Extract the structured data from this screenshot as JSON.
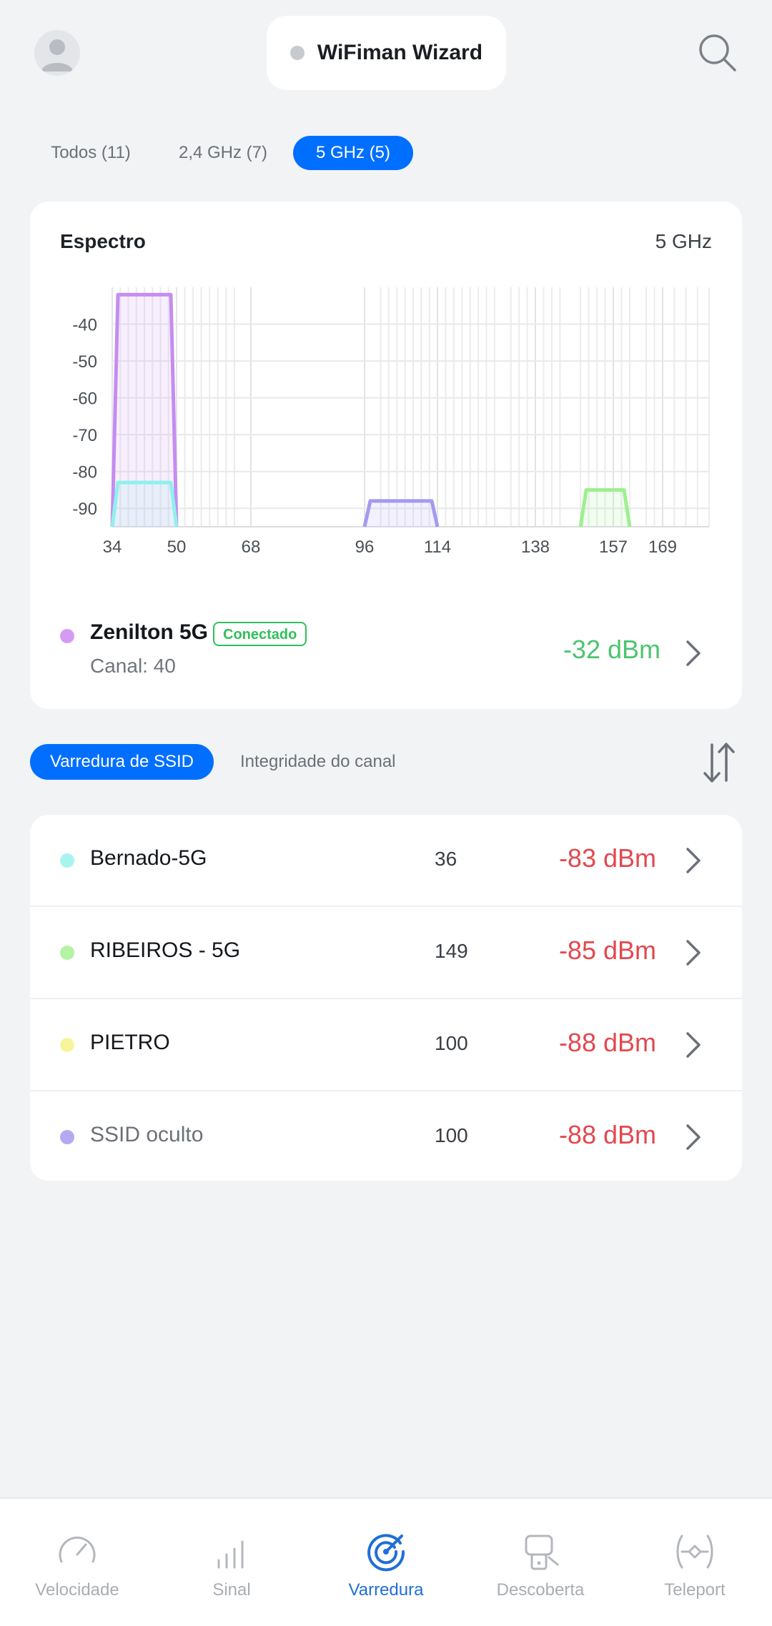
{
  "header": {
    "title": "WiFiman Wizard",
    "avatar_icon": "user-avatar-icon",
    "search_icon": "search-icon"
  },
  "band_tabs": [
    {
      "label": "Todos (11)",
      "active": false
    },
    {
      "label": "2,4 GHz (7)",
      "active": false
    },
    {
      "label": "5 GHz (5)",
      "active": true
    }
  ],
  "spectrum": {
    "title": "Espectro",
    "band": "5 GHz",
    "connected": {
      "name": "Zenilton 5G",
      "badge": "Conectado",
      "channel_text": "Canal: 40",
      "signal": "-32 dBm",
      "color": "#d59bf2"
    }
  },
  "chart_data": {
    "type": "area",
    "title": "",
    "xlabel": "",
    "ylabel": "",
    "x_ticks": [
      "34",
      "50",
      "68",
      "96",
      "114",
      "138",
      "157",
      "169"
    ],
    "y_ticks": [
      "-40",
      "-50",
      "-60",
      "-70",
      "-80",
      "-90"
    ],
    "ylim": [
      -95,
      -30
    ],
    "series": [
      {
        "name": "Zenilton 5G",
        "channel_start": 34,
        "channel_end": 50,
        "signal_dbm": -32,
        "color": "#c58cf0"
      },
      {
        "name": "Bernado-5G",
        "channel_start": 34,
        "channel_end": 50,
        "signal_dbm": -83,
        "color": "#8ff0ec"
      },
      {
        "name": "SSID oculto",
        "channel_start": 96,
        "channel_end": 114,
        "signal_dbm": -88,
        "color": "#a49af0"
      },
      {
        "name": "RIBEIROS - 5G",
        "channel_start": 149,
        "channel_end": 161,
        "signal_dbm": -85,
        "color": "#9df08e"
      }
    ]
  },
  "section_tabs": {
    "active_label": "Varredura de SSID",
    "other_label": "Integridade do canal",
    "sort_icon": "sort-arrows-icon"
  },
  "networks": [
    {
      "name": "Bernado-5G",
      "channel": "36",
      "signal": "-83 dBm",
      "color": "#a9f3ef",
      "muted": false
    },
    {
      "name": "RIBEIROS - 5G",
      "channel": "149",
      "signal": "-85 dBm",
      "color": "#b4f3a4",
      "muted": false
    },
    {
      "name": "PIETRO",
      "channel": "100",
      "signal": "-88 dBm",
      "color": "#f7f59c",
      "muted": false
    },
    {
      "name": "SSID oculto",
      "channel": "100",
      "signal": "-88 dBm",
      "color": "#b3aaf2",
      "muted": true
    }
  ],
  "bottom_nav": [
    {
      "label": "Velocidade",
      "icon": "speedometer-icon",
      "active": false
    },
    {
      "label": "Sinal",
      "icon": "signal-bars-icon",
      "active": false
    },
    {
      "label": "Varredura",
      "icon": "radar-scan-icon",
      "active": true
    },
    {
      "label": "Descoberta",
      "icon": "device-discovery-icon",
      "active": false
    },
    {
      "label": "Teleport",
      "icon": "teleport-icon",
      "active": false
    }
  ],
  "colors": {
    "accent": "#006fff",
    "good_signal": "#4cc46f",
    "bad_signal": "#e2484f",
    "background": "#f2f3f5"
  }
}
